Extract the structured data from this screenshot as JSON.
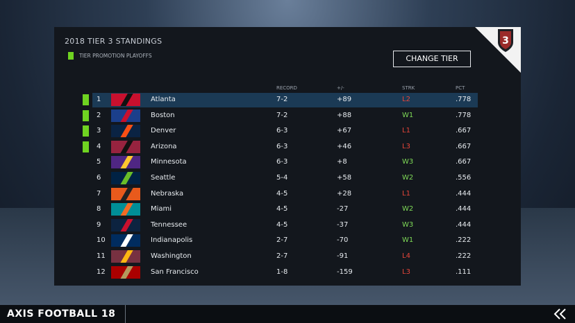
{
  "header": {
    "title": "2018 TIER 3 STANDINGS",
    "legend": "TIER PROMOTION PLAYOFFS",
    "button": "CHANGE TIER",
    "tier_badge": "3"
  },
  "table": {
    "columns": [
      "RECORD",
      "+/-",
      "STRK",
      "PCT"
    ],
    "rows": [
      {
        "rank": "1",
        "team": "Atlanta",
        "record": "7-2",
        "diff": "+89",
        "streak": "L2",
        "pct": ".778",
        "promotion": true
      },
      {
        "rank": "2",
        "team": "Boston",
        "record": "7-2",
        "diff": "+88",
        "streak": "W1",
        "pct": ".778",
        "promotion": true
      },
      {
        "rank": "3",
        "team": "Denver",
        "record": "6-3",
        "diff": "+67",
        "streak": "L1",
        "pct": ".667",
        "promotion": true
      },
      {
        "rank": "4",
        "team": "Arizona",
        "record": "6-3",
        "diff": "+46",
        "streak": "L3",
        "pct": ".667",
        "promotion": true
      },
      {
        "rank": "5",
        "team": "Minnesota",
        "record": "6-3",
        "diff": "+8",
        "streak": "W3",
        "pct": ".667",
        "promotion": false
      },
      {
        "rank": "6",
        "team": "Seattle",
        "record": "5-4",
        "diff": "+58",
        "streak": "W2",
        "pct": ".556",
        "promotion": false
      },
      {
        "rank": "7",
        "team": "Nebraska",
        "record": "4-5",
        "diff": "+28",
        "streak": "L1",
        "pct": ".444",
        "promotion": false
      },
      {
        "rank": "8",
        "team": "Miami",
        "record": "4-5",
        "diff": "-27",
        "streak": "W2",
        "pct": ".444",
        "promotion": false
      },
      {
        "rank": "9",
        "team": "Tennessee",
        "record": "4-5",
        "diff": "-37",
        "streak": "W3",
        "pct": ".444",
        "promotion": false
      },
      {
        "rank": "10",
        "team": "Indianapolis",
        "record": "2-7",
        "diff": "-70",
        "streak": "W1",
        "pct": ".222",
        "promotion": false
      },
      {
        "rank": "11",
        "team": "Washington",
        "record": "2-7",
        "diff": "-91",
        "streak": "L4",
        "pct": ".222",
        "promotion": false
      },
      {
        "rank": "12",
        "team": "San Francisco",
        "record": "1-8",
        "diff": "-159",
        "streak": "L3",
        "pct": ".111",
        "promotion": false
      }
    ]
  },
  "footer": {
    "title": "AXIS FOOTBALL 18"
  }
}
